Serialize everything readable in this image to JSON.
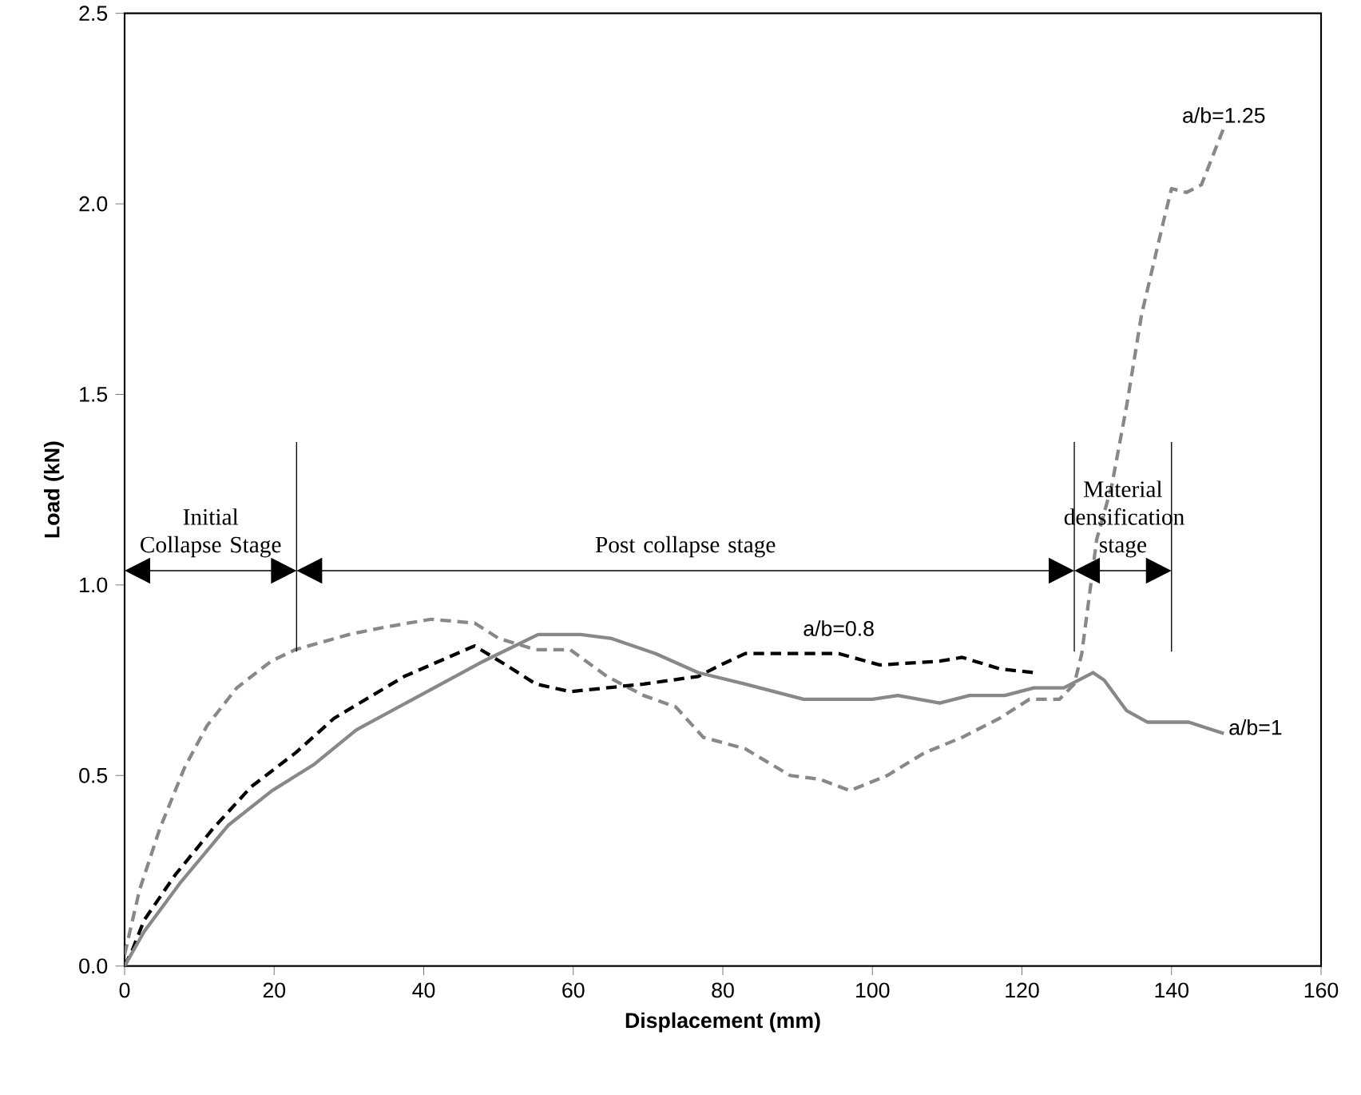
{
  "chart_data": {
    "type": "line",
    "xlabel": "Displacement (mm)",
    "ylabel": "Load (kN)",
    "xlim": [
      0,
      160
    ],
    "ylim": [
      0,
      2.5
    ],
    "xticks": [
      0,
      20,
      40,
      60,
      80,
      100,
      120,
      140,
      160
    ],
    "yticks": [
      {
        "value": 0,
        "label": "0.0"
      },
      {
        "value": 0.5,
        "label": "0.5"
      },
      {
        "value": 1,
        "label": "1.0"
      },
      {
        "value": 1.5,
        "label": "1.5"
      },
      {
        "value": 2,
        "label": "2.0"
      },
      {
        "value": 2.5,
        "label": "2.5"
      }
    ],
    "grid": false,
    "legend": false,
    "marker": "none",
    "series": [
      {
        "name": "a/b=1.25",
        "color": "#888888",
        "line_style": "dashed",
        "x": [
          0,
          2,
          4.7,
          8,
          11,
          15,
          19.6,
          22.8,
          30,
          35,
          41,
          46.8,
          50,
          55,
          59.6,
          64.5,
          69.4,
          73.7,
          77.4,
          83,
          89,
          93,
          97,
          102,
          107,
          112,
          117,
          121,
          125,
          127,
          128,
          130,
          132,
          134,
          136,
          139,
          140,
          142,
          144,
          147
        ],
        "values": [
          0.03,
          0.2,
          0.36,
          0.52,
          0.63,
          0.73,
          0.8,
          0.83,
          0.87,
          0.89,
          0.91,
          0.9,
          0.86,
          0.83,
          0.83,
          0.76,
          0.71,
          0.68,
          0.6,
          0.57,
          0.5,
          0.49,
          0.46,
          0.5,
          0.56,
          0.6,
          0.65,
          0.7,
          0.7,
          0.74,
          0.82,
          1.12,
          1.26,
          1.47,
          1.71,
          1.96,
          2.04,
          2.03,
          2.05,
          2.2
        ]
      },
      {
        "name": "a/b=0.8",
        "color": "#000000",
        "line_style": "dashed",
        "x": [
          0,
          1,
          2.6,
          6.8,
          11.8,
          16.9,
          22.9,
          28,
          37.4,
          46.8,
          51,
          55,
          59.6,
          69.4,
          76.7,
          79.7,
          83,
          90.8,
          95.5,
          101,
          109,
          112,
          117,
          121.6
        ],
        "values": [
          0,
          0.04,
          0.12,
          0.24,
          0.36,
          0.47,
          0.56,
          0.65,
          0.76,
          0.84,
          0.79,
          0.74,
          0.72,
          0.74,
          0.76,
          0.79,
          0.82,
          0.82,
          0.82,
          0.79,
          0.8,
          0.81,
          0.78,
          0.77
        ]
      },
      {
        "name": "a/b=1",
        "color": "#888888",
        "line_style": "solid",
        "x": [
          0,
          2.6,
          7.5,
          13.9,
          19.7,
          25.4,
          31,
          39.5,
          48,
          55.3,
          61,
          65,
          71,
          76.7,
          83,
          90.8,
          100,
          103.4,
          109,
          113,
          117.7,
          121.6,
          125.6,
          129.5,
          131,
          134,
          136.8,
          142.3,
          147
        ],
        "values": [
          0,
          0.09,
          0.22,
          0.37,
          0.46,
          0.53,
          0.62,
          0.71,
          0.8,
          0.87,
          0.87,
          0.86,
          0.82,
          0.77,
          0.74,
          0.7,
          0.7,
          0.71,
          0.69,
          0.71,
          0.71,
          0.73,
          0.73,
          0.77,
          0.75,
          0.67,
          0.64,
          0.64,
          0.61
        ]
      }
    ],
    "ref_lines": [
      {
        "axis": "x",
        "value": 23
      },
      {
        "axis": "x",
        "value": 127
      },
      {
        "axis": "x",
        "value": 140
      }
    ],
    "annotations": [
      "Initial Collapse Stage",
      "Post collapse stage",
      "Material densification stage"
    ]
  }
}
